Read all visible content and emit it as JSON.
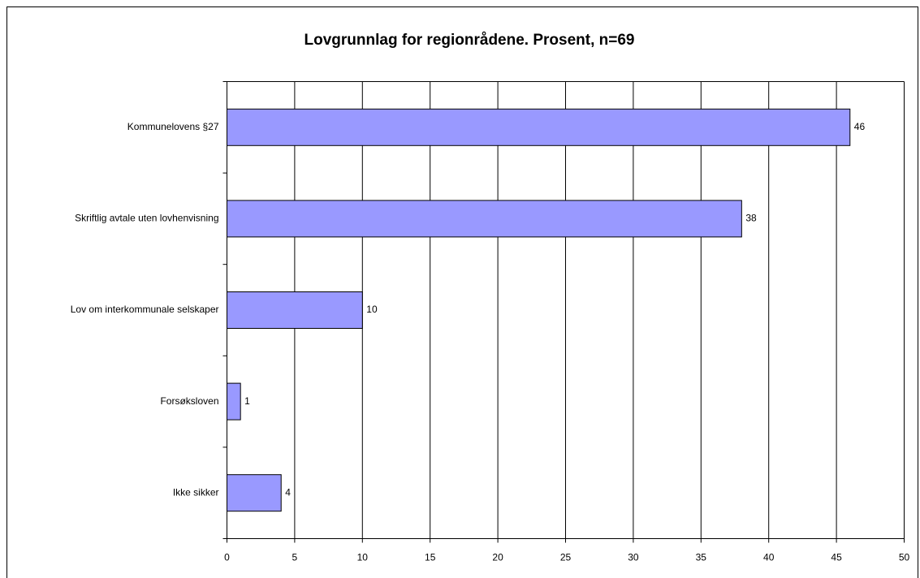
{
  "chart_data": {
    "type": "bar",
    "orientation": "horizontal",
    "title": "Lovgrunnlag for regionrådene. Prosent, n=69",
    "categories": [
      "Kommunelovens §27",
      "Skriftlig avtale uten lovhenvisning",
      "Lov om interkommunale selskaper",
      "Forsøksloven",
      "Ikke sikker"
    ],
    "values": [
      46,
      38,
      10,
      1,
      4
    ],
    "color": "#9999ff",
    "xlim": [
      0,
      50
    ],
    "xticks": [
      0,
      5,
      10,
      15,
      20,
      25,
      30,
      35,
      40,
      45,
      50
    ],
    "grid": true
  }
}
